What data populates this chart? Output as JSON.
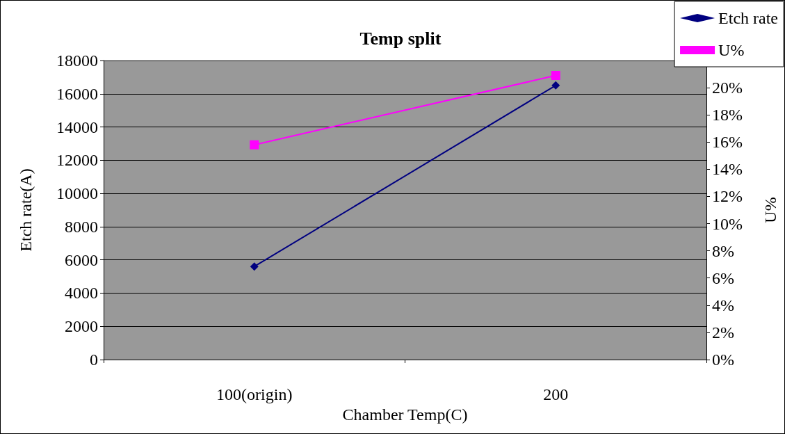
{
  "chart_data": {
    "type": "line",
    "title": "Temp split",
    "xlabel": "Chamber Temp(C)",
    "ylabel": "Etch rate(A)",
    "y2label": "U%",
    "categories": [
      "100(origin)",
      "200"
    ],
    "series": [
      {
        "name": "Etch rate",
        "color": "#000080",
        "values": [
          5600,
          16500
        ],
        "marker": "diamond"
      },
      {
        "name": "U%",
        "color": "#ff00ff",
        "values": [
          15.8,
          20.9
        ],
        "axis": "y2",
        "marker": "square"
      }
    ],
    "ylim": [
      0,
      18000
    ],
    "yticks": [
      0,
      2000,
      4000,
      6000,
      8000,
      10000,
      12000,
      14000,
      16000,
      18000
    ],
    "y2lim": [
      0,
      22
    ],
    "y2ticks": [
      {
        "value": 0,
        "label": "0%"
      },
      {
        "value": 2,
        "label": "2%"
      },
      {
        "value": 4,
        "label": "4%"
      },
      {
        "value": 6,
        "label": "6%"
      },
      {
        "value": 8,
        "label": "8%"
      },
      {
        "value": 10,
        "label": "10%"
      },
      {
        "value": 12,
        "label": "12%"
      },
      {
        "value": 14,
        "label": "14%"
      },
      {
        "value": 16,
        "label": "16%"
      },
      {
        "value": 18,
        "label": "18%"
      },
      {
        "value": 20,
        "label": "20%"
      }
    ],
    "grid": "y",
    "legend": "top right",
    "line_style": "solid"
  }
}
